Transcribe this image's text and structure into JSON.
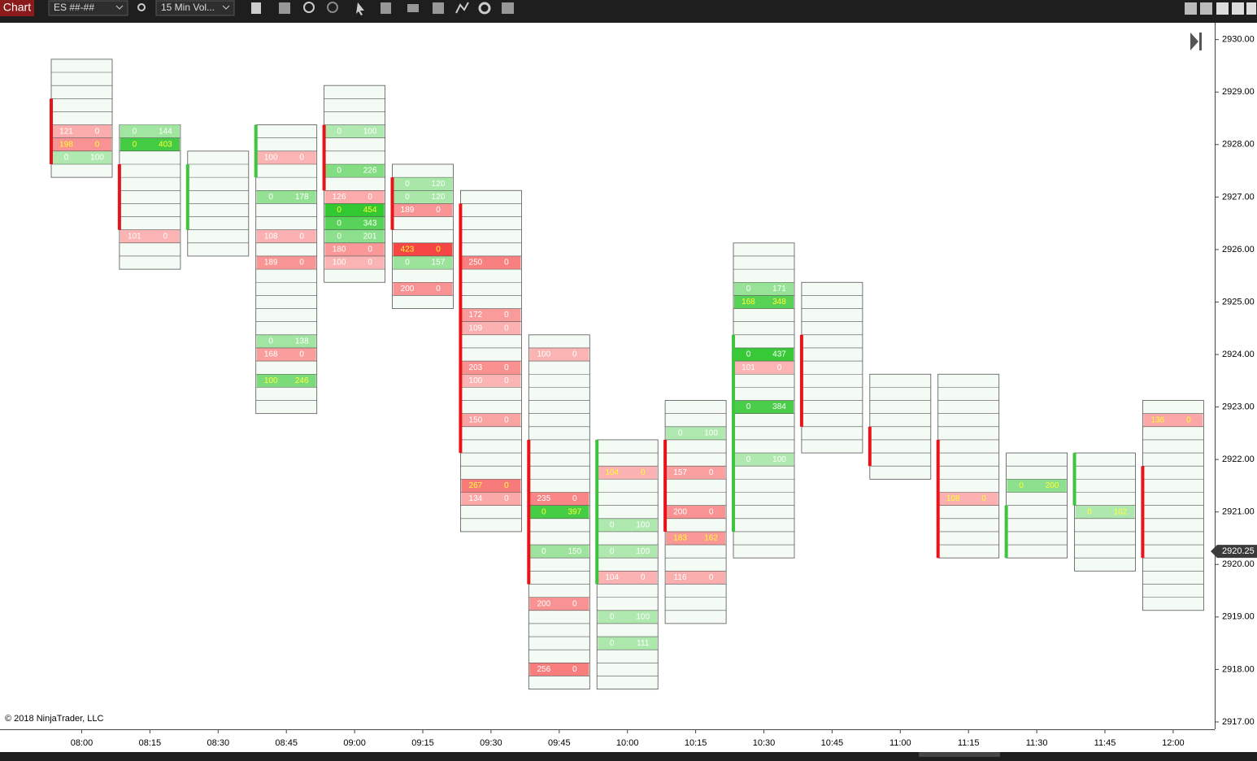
{
  "toolbar": {
    "tab": "Chart",
    "instrument": "ES ##-##",
    "period": "15 Min Vol..."
  },
  "copyright": "© 2018 NinjaTrader, LLC",
  "chart_data": {
    "type": "footprint",
    "tick_size": 0.25,
    "ylim": [
      2916.86,
      2930.32
    ],
    "yticks": [
      {
        "value": 2917,
        "label": "2917.00"
      },
      {
        "value": 2918,
        "label": "2918.00"
      },
      {
        "value": 2919,
        "label": "2919.00"
      },
      {
        "value": 2920,
        "label": "2920.00"
      },
      {
        "value": 2921,
        "label": "2921.00"
      },
      {
        "value": 2922,
        "label": "2922.00"
      },
      {
        "value": 2923,
        "label": "2923.00"
      },
      {
        "value": 2924,
        "label": "2924.00"
      },
      {
        "value": 2925,
        "label": "2925.00"
      },
      {
        "value": 2926,
        "label": "2926.00"
      },
      {
        "value": 2927,
        "label": "2927.00"
      },
      {
        "value": 2928,
        "label": "2928.00"
      },
      {
        "value": 2929,
        "label": "2929.00"
      },
      {
        "value": 2930,
        "label": "2930.00"
      }
    ],
    "last_price": {
      "value": 2920.25,
      "label": "2920.25"
    },
    "up_color": "#3ec43e",
    "down_color": "#e8141a",
    "highlight_text_color": "#ffff33",
    "categories": [
      "08:00",
      "08:15",
      "08:30",
      "08:45",
      "09:00",
      "09:15",
      "09:30",
      "09:45",
      "10:00",
      "10:15",
      "10:30",
      "10:45",
      "11:00",
      "11:15",
      "11:30",
      "11:45",
      "12:00"
    ],
    "bars": [
      {
        "high": 2929.5,
        "low": 2927.5,
        "open": 2928.75,
        "close": 2927.75,
        "cells": [
          {
            "price": 2928.25,
            "bid": 121,
            "ask": 0
          },
          {
            "price": 2928,
            "bid": 198,
            "ask": 0,
            "highlight": true
          },
          {
            "price": 2927.75,
            "bid": 0,
            "ask": 100
          }
        ]
      },
      {
        "high": 2928.25,
        "low": 2925.75,
        "open": 2927.5,
        "close": 2926.5,
        "cells": [
          {
            "price": 2928.25,
            "bid": 0,
            "ask": 144
          },
          {
            "price": 2928,
            "bid": 0,
            "ask": 403,
            "highlight": true
          },
          {
            "price": 2926.25,
            "bid": 101,
            "ask": 0
          }
        ]
      },
      {
        "high": 2927.75,
        "low": 2926,
        "open": 2926.5,
        "close": 2927.5,
        "cells": []
      },
      {
        "high": 2928.25,
        "low": 2923,
        "open": 2927.5,
        "close": 2928.25,
        "cells": [
          {
            "price": 2927.75,
            "bid": 100,
            "ask": 0
          },
          {
            "price": 2927,
            "bid": 0,
            "ask": 178
          },
          {
            "price": 2926.25,
            "bid": 108,
            "ask": 0
          },
          {
            "price": 2925.75,
            "bid": 189,
            "ask": 0
          },
          {
            "price": 2924.25,
            "bid": 0,
            "ask": 138
          },
          {
            "price": 2924,
            "bid": 168,
            "ask": 0
          },
          {
            "price": 2923.5,
            "bid": 100,
            "ask": 246,
            "highlight": true
          }
        ]
      },
      {
        "high": 2929,
        "low": 2925.5,
        "open": 2928.25,
        "close": 2927.25,
        "cells": [
          {
            "price": 2928.25,
            "bid": 0,
            "ask": 100
          },
          {
            "price": 2927.5,
            "bid": 0,
            "ask": 226
          },
          {
            "price": 2927,
            "bid": 126,
            "ask": 0
          },
          {
            "price": 2926.75,
            "bid": 0,
            "ask": 454,
            "highlight": true
          },
          {
            "price": 2926.5,
            "bid": 0,
            "ask": 343
          },
          {
            "price": 2926.25,
            "bid": 0,
            "ask": 201
          },
          {
            "price": 2926,
            "bid": 180,
            "ask": 0
          },
          {
            "price": 2925.75,
            "bid": 100,
            "ask": 0
          }
        ]
      },
      {
        "high": 2927.5,
        "low": 2925,
        "open": 2927.25,
        "close": 2926.5,
        "cells": [
          {
            "price": 2927.25,
            "bid": 0,
            "ask": 120
          },
          {
            "price": 2927,
            "bid": 0,
            "ask": 120
          },
          {
            "price": 2926.75,
            "bid": 189,
            "ask": 0
          },
          {
            "price": 2926,
            "bid": 423,
            "ask": 0,
            "highlight": true
          },
          {
            "price": 2925.75,
            "bid": 0,
            "ask": 157
          },
          {
            "price": 2925.25,
            "bid": 200,
            "ask": 0
          }
        ]
      },
      {
        "high": 2927,
        "low": 2920.75,
        "open": 2926.75,
        "close": 2922.25,
        "cells": [
          {
            "price": 2925.75,
            "bid": 250,
            "ask": 0
          },
          {
            "price": 2924.75,
            "bid": 172,
            "ask": 0
          },
          {
            "price": 2924.5,
            "bid": 109,
            "ask": 0
          },
          {
            "price": 2923.75,
            "bid": 203,
            "ask": 0
          },
          {
            "price": 2923.5,
            "bid": 100,
            "ask": 0
          },
          {
            "price": 2922.75,
            "bid": 150,
            "ask": 0
          },
          {
            "price": 2921.5,
            "bid": 267,
            "ask": 0,
            "highlight": true
          },
          {
            "price": 2921.25,
            "bid": 134,
            "ask": 0
          }
        ]
      },
      {
        "high": 2924.25,
        "low": 2917.75,
        "open": 2922.25,
        "close": 2919.75,
        "cells": [
          {
            "price": 2924,
            "bid": 100,
            "ask": 0
          },
          {
            "price": 2921.25,
            "bid": 235,
            "ask": 0
          },
          {
            "price": 2921,
            "bid": 0,
            "ask": 397,
            "highlight": true
          },
          {
            "price": 2920.25,
            "bid": 0,
            "ask": 150
          },
          {
            "price": 2919.25,
            "bid": 200,
            "ask": 0
          },
          {
            "price": 2918,
            "bid": 256,
            "ask": 0
          }
        ]
      },
      {
        "high": 2922.25,
        "low": 2917.75,
        "open": 2919.75,
        "close": 2922.25,
        "cells": [
          {
            "price": 2921.75,
            "bid": 104,
            "ask": 0,
            "highlight": true
          },
          {
            "price": 2920.75,
            "bid": 0,
            "ask": 100
          },
          {
            "price": 2920.25,
            "bid": 0,
            "ask": 100
          },
          {
            "price": 2919.75,
            "bid": 104,
            "ask": 0
          },
          {
            "price": 2919,
            "bid": 0,
            "ask": 100
          },
          {
            "price": 2918.5,
            "bid": 0,
            "ask": 111
          }
        ]
      },
      {
        "high": 2923,
        "low": 2919,
        "open": 2922.25,
        "close": 2920.75,
        "cells": [
          {
            "price": 2922.5,
            "bid": 0,
            "ask": 100
          },
          {
            "price": 2921.75,
            "bid": 157,
            "ask": 0
          },
          {
            "price": 2921,
            "bid": 200,
            "ask": 0
          },
          {
            "price": 2920.5,
            "bid": 183,
            "ask": 162,
            "highlight": true
          },
          {
            "price": 2919.75,
            "bid": 116,
            "ask": 0
          }
        ]
      },
      {
        "high": 2926,
        "low": 2920.25,
        "open": 2920.75,
        "close": 2924.25,
        "cells": [
          {
            "price": 2925.25,
            "bid": 0,
            "ask": 171
          },
          {
            "price": 2925,
            "bid": 168,
            "ask": 348,
            "highlight": true
          },
          {
            "price": 2924,
            "bid": 0,
            "ask": 437
          },
          {
            "price": 2923.75,
            "bid": 101,
            "ask": 0
          },
          {
            "price": 2923,
            "bid": 0,
            "ask": 384
          },
          {
            "price": 2922,
            "bid": 0,
            "ask": 100
          }
        ]
      },
      {
        "high": 2925.25,
        "low": 2922.25,
        "open": 2924.25,
        "close": 2922.75,
        "cells": []
      },
      {
        "high": 2923.5,
        "low": 2921.75,
        "open": 2922.5,
        "close": 2922,
        "cells": []
      },
      {
        "high": 2923.5,
        "low": 2920.25,
        "open": 2922.25,
        "close": 2920.25,
        "cells": [
          {
            "price": 2921.25,
            "bid": 108,
            "ask": 0,
            "highlight": true
          }
        ]
      },
      {
        "high": 2922,
        "low": 2920.25,
        "open": 2920.25,
        "close": 2921,
        "cells": [
          {
            "price": 2921.5,
            "bid": 0,
            "ask": 200,
            "highlight": true
          }
        ]
      },
      {
        "high": 2922,
        "low": 2920,
        "open": 2921.25,
        "close": 2922,
        "cells": [
          {
            "price": 2921,
            "bid": 0,
            "ask": 102,
            "highlight": true
          }
        ]
      },
      {
        "high": 2923,
        "low": 2919.25,
        "open": 2921.75,
        "close": 2920.25,
        "cells": [
          {
            "price": 2922.75,
            "bid": 136,
            "ask": 0,
            "highlight": true
          }
        ]
      }
    ]
  }
}
